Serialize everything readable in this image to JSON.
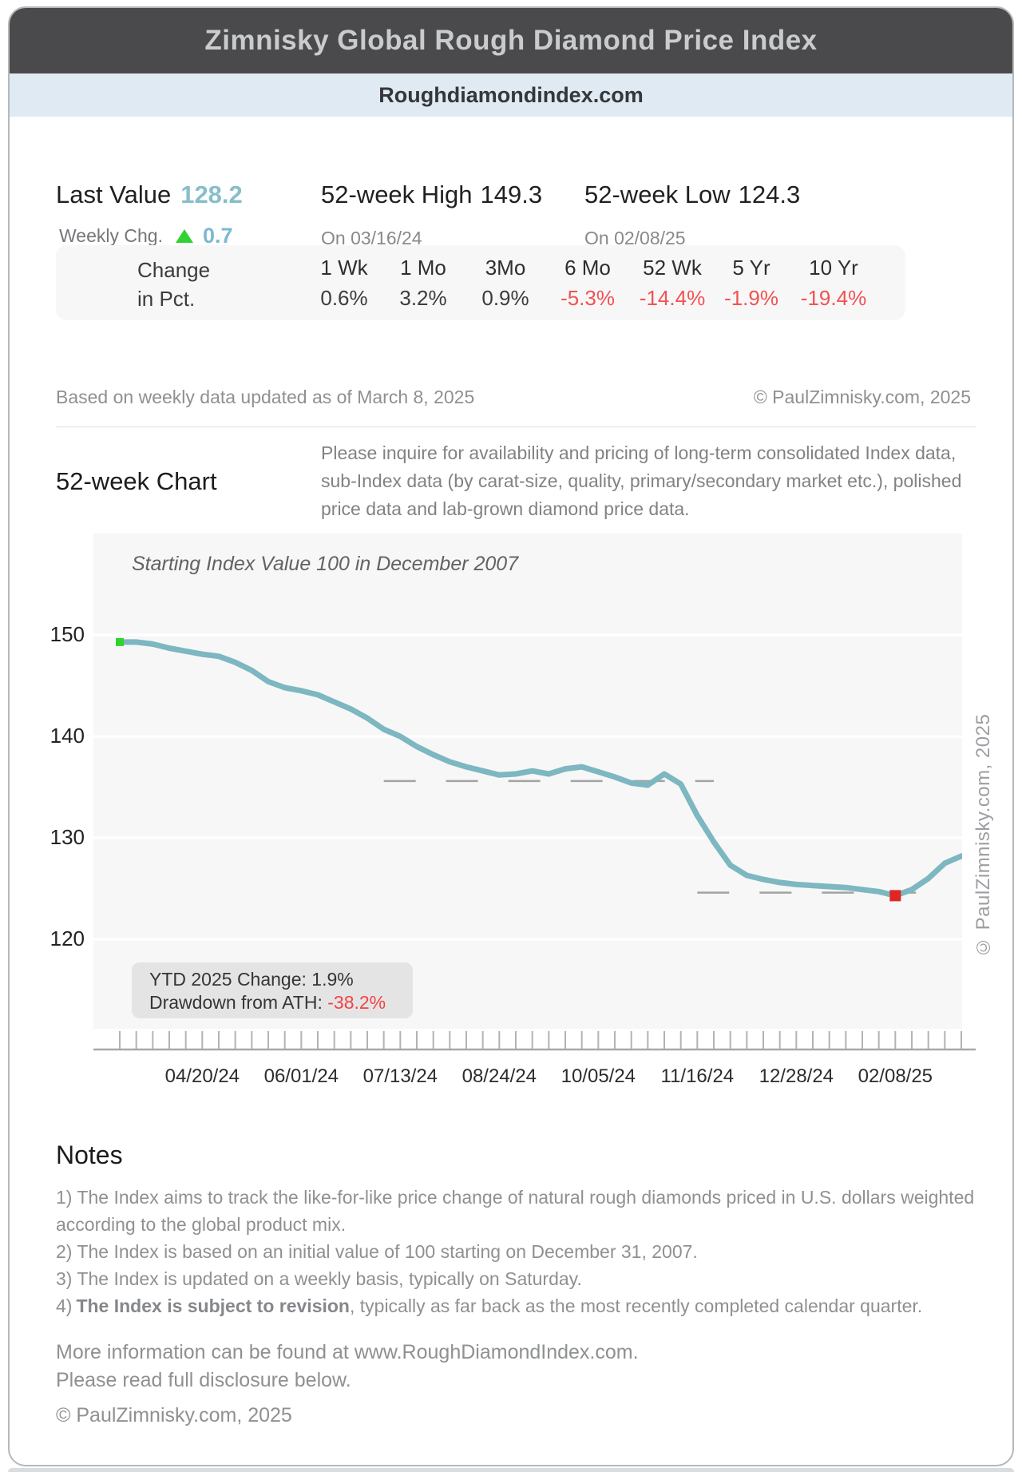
{
  "header": {
    "title": "Zimnisky Global Rough Diamond Price Index",
    "subtitle": "Roughdiamondindex.com"
  },
  "stats": {
    "last_value_label": "Last Value",
    "last_value": "128.2",
    "weekly_chg_label": "Weekly Chg.",
    "weekly_chg": "0.7",
    "weekly_chg_direction": "up",
    "high_label": "52-week High",
    "high_value": "149.3",
    "high_date": "On 03/16/24",
    "low_label": "52-week Low",
    "low_value": "124.3",
    "low_date": "On 02/08/25"
  },
  "change_table": {
    "row_label_line1": "Change",
    "row_label_line2": "in Pct.",
    "columns": [
      {
        "label": "1 Wk",
        "value": "0.6%",
        "negative": false
      },
      {
        "label": "1 Mo",
        "value": "3.2%",
        "negative": false
      },
      {
        "label": "3Mo",
        "value": "0.9%",
        "negative": false
      },
      {
        "label": "6 Mo",
        "value": "-5.3%",
        "negative": true
      },
      {
        "label": "52 Wk",
        "value": "-14.4%",
        "negative": true
      },
      {
        "label": "5 Yr",
        "value": "-1.9%",
        "negative": true
      },
      {
        "label": "10 Yr",
        "value": "-19.4%",
        "negative": true
      }
    ]
  },
  "meta": {
    "updated_text": "Based on weekly data updated as of March 8, 2025",
    "copyright": "© PaulZimnisky.com, 2025"
  },
  "chart_section": {
    "heading": "52-week Chart",
    "inquiry_text": "Please inquire for availability and pricing of long-term consolidated Index data, sub-Index data (by carat-size, quality, primary/secondary market etc.), polished price data and lab-grown diamond price data.",
    "annotation": "Starting Index Value 100 in December 2007",
    "ytd_text": "YTD 2025 Change: 1.9%",
    "drawdown_label": "Drawdown from ATH: ",
    "drawdown_value": "-38.2%",
    "side_copyright": "© PaulZimnisky.com, 2025"
  },
  "chart_data": {
    "type": "line",
    "title": "52-week Chart",
    "annotation": "Starting Index Value 100 in December 2007",
    "frequency": "weekly",
    "x_start_date": "03/16/24",
    "x_end_date": "03/08/25",
    "values": [
      149.3,
      149.3,
      149.1,
      148.7,
      148.4,
      148.1,
      147.9,
      147.3,
      146.5,
      145.4,
      144.8,
      144.5,
      144.1,
      143.4,
      142.7,
      141.8,
      140.7,
      140.0,
      139.0,
      138.2,
      137.5,
      137.0,
      136.6,
      136.2,
      136.3,
      136.6,
      136.3,
      136.8,
      137.0,
      136.5,
      136.0,
      135.4,
      135.2,
      136.3,
      135.3,
      132.2,
      129.6,
      127.3,
      126.3,
      125.9,
      125.6,
      125.4,
      125.3,
      125.2,
      125.1,
      124.9,
      124.7,
      124.3,
      124.9,
      126.0,
      127.5,
      128.2
    ],
    "y_ticks": [
      150,
      140,
      130,
      120
    ],
    "ylim": [
      111,
      160
    ],
    "x_tick_labels": [
      "04/20/24",
      "06/01/24",
      "07/13/24",
      "08/24/24",
      "10/05/24",
      "11/16/24",
      "12/28/24",
      "02/08/25"
    ],
    "x_tick_week_indices": [
      5,
      11,
      17,
      23,
      29,
      35,
      41,
      47
    ],
    "grid": "horizontal-white-lines",
    "legend": "none",
    "line_color": "#7db7c1",
    "markers": [
      {
        "name": "high-start-marker",
        "week": 0,
        "value": 149.3,
        "color": "#2fd32f",
        "shape": "square",
        "size": 10
      },
      {
        "name": "low-marker",
        "week": 47,
        "value": 124.3,
        "color": "#e02525",
        "shape": "square",
        "size": 14
      }
    ],
    "reference_dashes": [
      {
        "value": 135.6,
        "from_week": 16,
        "to_week": 36
      },
      {
        "value": 124.6,
        "from_week": 35,
        "to_week": 50
      }
    ]
  },
  "notes": {
    "heading": "Notes",
    "note1": "1) The Index aims to track the like-for-like price change of natural rough diamonds priced in U.S. dollars weighted according to the global product mix.",
    "note2": "2) The Index is based on an initial value of 100 starting on December 31, 2007.",
    "note3": "3) The Index is updated on a weekly basis, typically on Saturday.",
    "note4_prefix": "4)",
    "note4_bold": "The Index is subject to revision",
    "note4_rest": ", typically as far back as the most recently completed calendar quarter."
  },
  "footer": {
    "info_line1": "More information can be found at www.RoughDiamondIndex.com.",
    "info_line2": "Please read full disclosure below.",
    "copyright": "© PaulZimnisky.com, 2025"
  },
  "colors": {
    "header_bg": "#4a4a4c",
    "subheader_bg": "#dfeaf2",
    "accent_teal": "#87bec9",
    "positive_green": "#2fd32f",
    "negative_red": "#f25252",
    "line_teal": "#7db7c1",
    "plot_bg": "#f7f7f7"
  }
}
